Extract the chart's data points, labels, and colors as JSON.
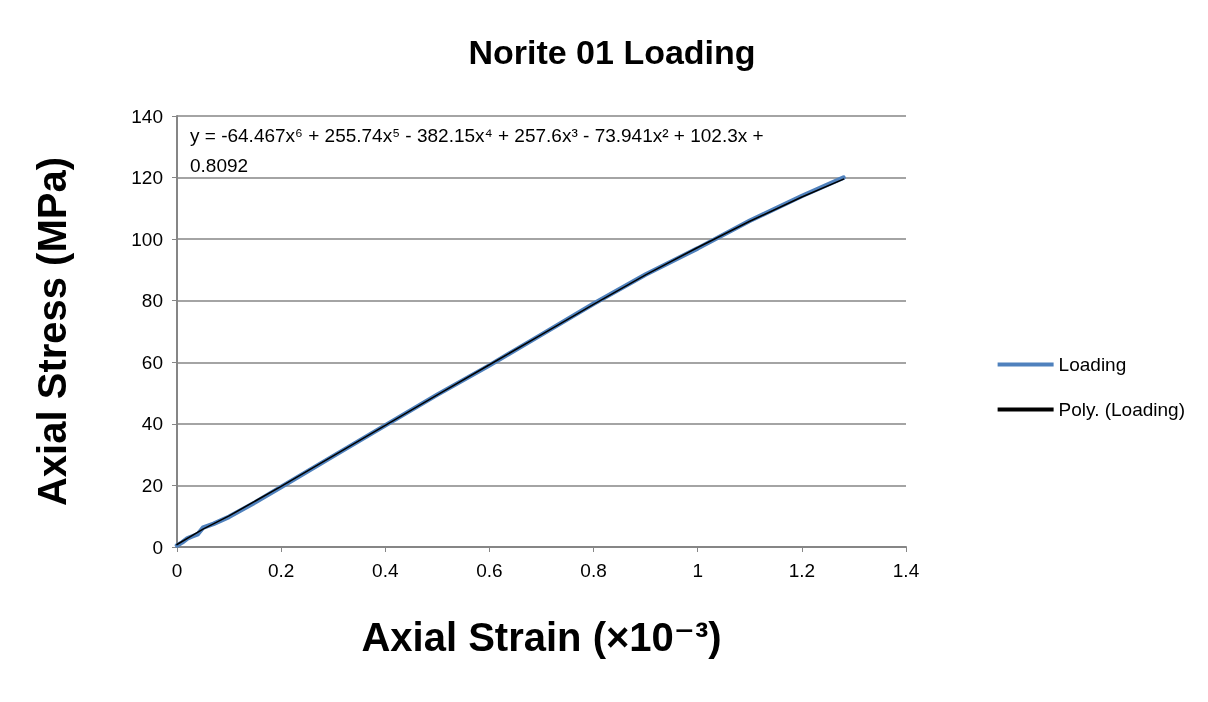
{
  "chart_data": {
    "type": "line",
    "title": "Norite 01 Loading",
    "xlabel": "Axial Strain (×10⁻³)",
    "ylabel": "Axial Stress (MPa)",
    "annotations": [
      "y = -64.467x⁶ + 255.74x⁵ - 382.15x⁴ + 257.6x³ - 73.941x² + 102.3x + 0.8092"
    ],
    "xlim": [
      0,
      1.4
    ],
    "xticks": [
      0,
      0.2,
      0.4,
      0.6,
      0.8,
      1,
      1.2,
      1.4
    ],
    "ylim": [
      0,
      140
    ],
    "yticks": [
      0,
      20,
      40,
      60,
      80,
      100,
      120,
      140
    ],
    "grid": "y",
    "legend": "right",
    "marker": "none",
    "line_style": "solid",
    "series": [
      {
        "name": "Loading",
        "color": "#4f81bd",
        "x": [
          0,
          0.01,
          0.02,
          0.03,
          0.04,
          0.05,
          0.07,
          0.1,
          0.15,
          0.2,
          0.3,
          0.4,
          0.5,
          0.6,
          0.7,
          0.8,
          0.9,
          1.0,
          1.1,
          1.2,
          1.28
        ],
        "values": [
          0.5,
          1.5,
          2.8,
          3.5,
          4.2,
          6.3,
          7.5,
          9.8,
          14.5,
          19.5,
          29.5,
          39.5,
          49.5,
          59,
          69,
          79,
          88.5,
          97,
          106,
          114,
          120
        ]
      },
      {
        "name": "Poly. (Loading)",
        "color": "#000000",
        "x": [
          0,
          0.05,
          0.1,
          0.2,
          0.3,
          0.4,
          0.5,
          0.6,
          0.7,
          0.8,
          0.9,
          1.0,
          1.1,
          1.2,
          1.28
        ],
        "values": [
          0.8,
          5.8,
          10.1,
          19.7,
          29.6,
          39.5,
          49.4,
          59.2,
          69,
          78.8,
          88.4,
          97.3,
          105.8,
          113.7,
          119.5
        ]
      }
    ]
  }
}
